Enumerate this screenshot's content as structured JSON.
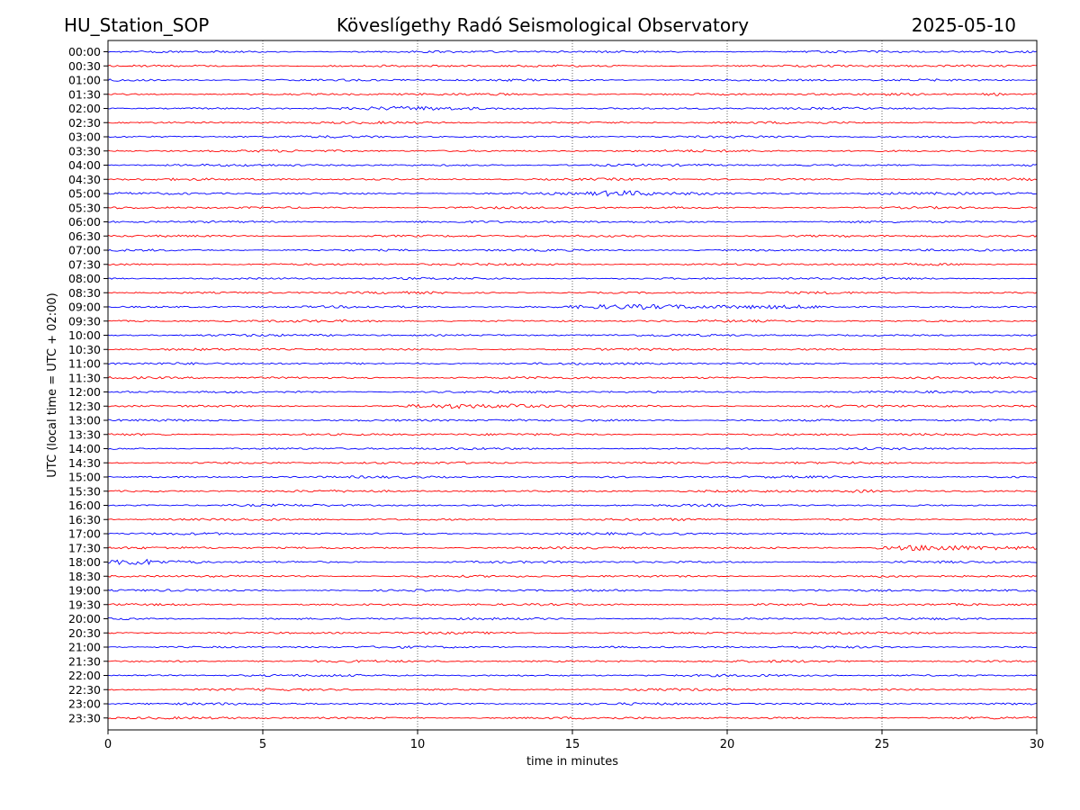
{
  "header": {
    "station": "HU_Station_SOP",
    "title": "Köveslígethy Radó Seismological Observatory",
    "date": "2025-05-10"
  },
  "chart_data": {
    "type": "line",
    "title": "Köveslígethy Radó Seismological Observatory",
    "xlabel": "time in minutes",
    "ylabel": "UTC (local time = UTC + 02:00)",
    "xlim": [
      0,
      30
    ],
    "x_ticks": [
      0,
      5,
      10,
      15,
      20,
      25,
      30
    ],
    "grid": "vertical dotted lines at each x tick",
    "colors": {
      "even_rows": "#0000ff",
      "odd_rows": "#ff0000"
    },
    "rows": [
      "00:00",
      "00:30",
      "01:00",
      "01:30",
      "02:00",
      "02:30",
      "03:00",
      "03:30",
      "04:00",
      "04:30",
      "05:00",
      "05:30",
      "06:00",
      "06:30",
      "07:00",
      "07:30",
      "08:00",
      "08:30",
      "09:00",
      "09:30",
      "10:00",
      "10:30",
      "11:00",
      "11:30",
      "12:00",
      "12:30",
      "13:00",
      "13:30",
      "14:00",
      "14:30",
      "15:00",
      "15:30",
      "16:00",
      "16:30",
      "17:00",
      "17:30",
      "18:00",
      "18:30",
      "19:00",
      "19:30",
      "20:00",
      "20:30",
      "21:00",
      "21:30",
      "22:00",
      "22:30",
      "23:00",
      "23:30"
    ],
    "events": [
      {
        "row": "05:00",
        "start_min": 15.3,
        "end_min": 19.5,
        "strength": 2.2
      },
      {
        "row": "05:00",
        "start_min": 24.0,
        "end_min": 27.5,
        "strength": 0.9
      },
      {
        "row": "09:00",
        "start_min": 14.5,
        "end_min": 23.0,
        "strength": 2.0
      },
      {
        "row": "12:30",
        "start_min": 9.5,
        "end_min": 15.0,
        "strength": 1.6
      },
      {
        "row": "12:30",
        "start_min": 12.8,
        "end_min": 13.5,
        "strength": 2.4
      },
      {
        "row": "15:30",
        "start_min": 23.5,
        "end_min": 26.5,
        "strength": 1.0
      },
      {
        "row": "17:00",
        "start_min": 17.8,
        "end_min": 18.6,
        "strength": 1.2
      },
      {
        "row": "17:30",
        "start_min": 24.8,
        "end_min": 30.0,
        "strength": 2.4
      },
      {
        "row": "18:00",
        "start_min": 0.0,
        "end_min": 3.0,
        "strength": 2.4
      },
      {
        "row": "01:30",
        "start_min": 28.0,
        "end_min": 30.0,
        "strength": 1.0
      },
      {
        "row": "02:00",
        "start_min": 7.5,
        "end_min": 14.0,
        "strength": 1.0
      }
    ]
  }
}
